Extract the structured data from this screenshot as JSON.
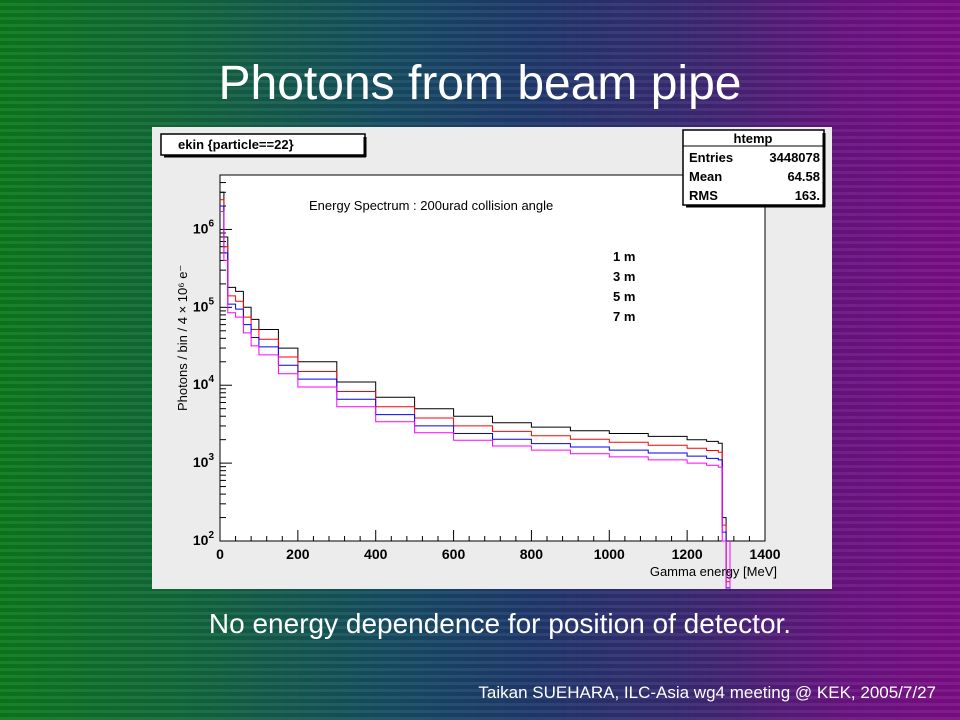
{
  "slide": {
    "title": "Photons from beam pipe",
    "caption": "No energy dependence for position of detector.",
    "footer": "Taikan  SUEHARA, ILC-Asia wg4 meeting @ KEK, 2005/7/27"
  },
  "colors": {
    "series_1m": "#000000",
    "series_3m": "#ff0000",
    "series_5m": "#0000ff",
    "series_7m": "#ff00ff"
  },
  "chart_data": {
    "type": "line",
    "style": "step histogram",
    "histogram_name": "ekin  {particle==22}",
    "title": "Energy Spectrum : 200urad collision angle",
    "xlabel": "Gamma energy [MeV]",
    "ylabel": "Photons / bin / 4 × 10⁶ e⁻",
    "xlim": [
      0,
      1400
    ],
    "ylim": [
      100,
      5000000
    ],
    "yscale": "log",
    "x_ticks": [
      "0",
      "200",
      "400",
      "600",
      "800",
      "1000",
      "1200",
      "1400"
    ],
    "y_ticks": [
      {
        "base": "10",
        "exp": "2"
      },
      {
        "base": "10",
        "exp": "3"
      },
      {
        "base": "10",
        "exp": "4"
      },
      {
        "base": "10",
        "exp": "5"
      },
      {
        "base": "10",
        "exp": "6"
      }
    ],
    "grid": false,
    "legend_position": "upper-right",
    "stats": {
      "title": "htemp",
      "rows": [
        {
          "label": "Entries",
          "value": "3448078"
        },
        {
          "label": "Mean",
          "value": "64.58"
        },
        {
          "label": "RMS",
          "value": "163."
        }
      ]
    },
    "x": [
      0,
      10,
      20,
      40,
      60,
      80,
      100,
      150,
      200,
      300,
      400,
      500,
      600,
      700,
      800,
      900,
      1000,
      1100,
      1200,
      1250,
      1280,
      1290,
      1300
    ],
    "series": [
      {
        "name": "1 m",
        "values": [
          3000000,
          800000,
          180000,
          160000,
          100000,
          70000,
          52000,
          30000,
          20000,
          11000,
          7000,
          5000,
          4000,
          3300,
          2900,
          2600,
          2400,
          2200,
          2000,
          1900,
          1800,
          200,
          40
        ]
      },
      {
        "name": "3 m",
        "values": [
          2400000,
          600000,
          140000,
          120000,
          75000,
          52000,
          39000,
          23000,
          15000,
          8300,
          5300,
          3800,
          3000,
          2550,
          2250,
          2030,
          1850,
          1700,
          1550,
          1450,
          1380,
          160,
          30
        ]
      },
      {
        "name": "5 m",
        "values": [
          2000000,
          500000,
          110000,
          95000,
          60000,
          41000,
          31000,
          18000,
          12000,
          6600,
          4200,
          3000,
          2400,
          2020,
          1780,
          1610,
          1470,
          1350,
          1230,
          1150,
          1100,
          130,
          25
        ]
      },
      {
        "name": "7 m",
        "values": [
          1700000,
          400000,
          85000,
          75000,
          47000,
          32000,
          24500,
          14000,
          9500,
          5300,
          3400,
          2450,
          1960,
          1660,
          1470,
          1320,
          1200,
          1100,
          1000,
          940,
          890,
          100,
          20
        ]
      }
    ]
  }
}
